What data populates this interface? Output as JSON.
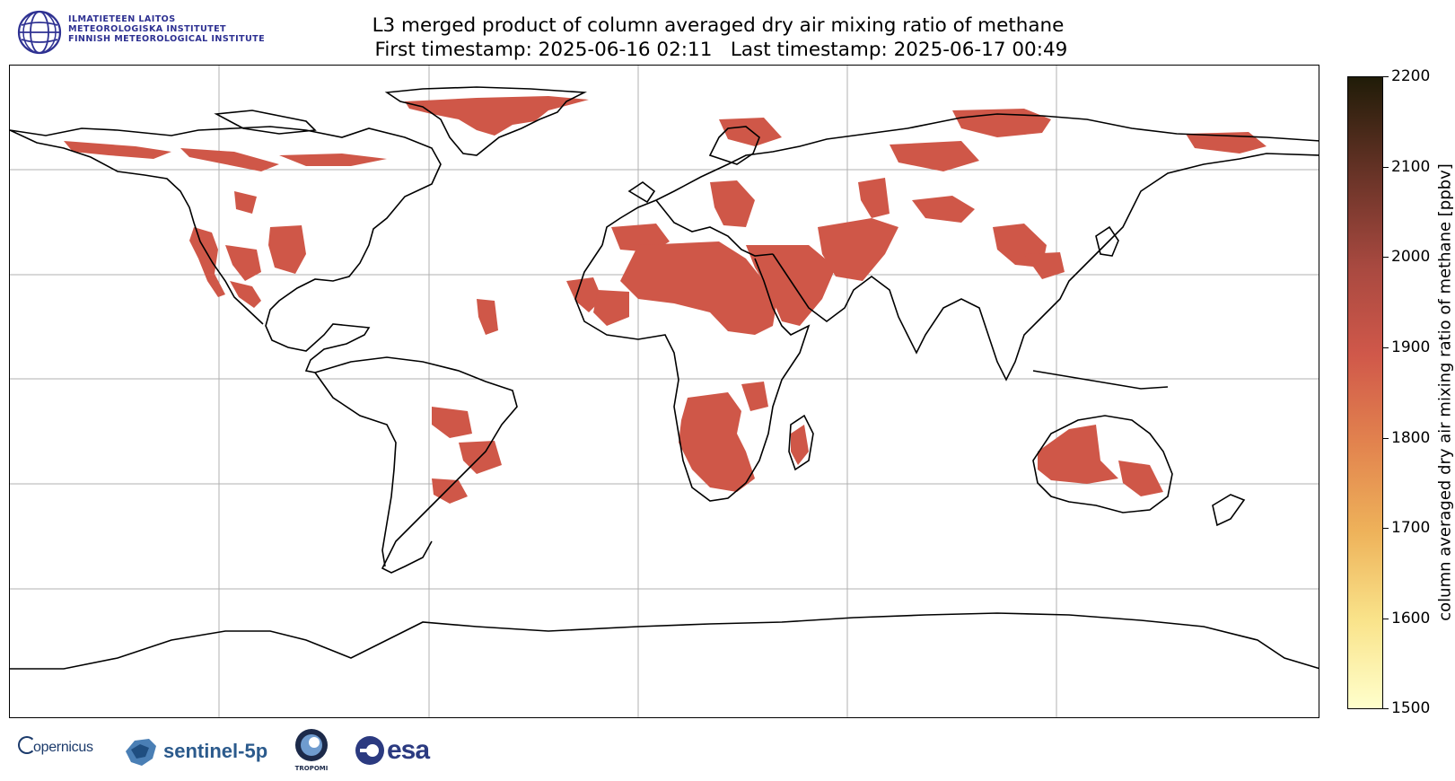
{
  "header": {
    "title_line1": "L3 merged product of column averaged dry air mixing ratio of methane",
    "title_line2": " First timestamp: 2025-06-16 02:11   Last timestamp: 2025-06-17 00:49"
  },
  "institute_logo": {
    "line1": "ILMATIETEEN LAITOS",
    "line2": "METEOROLOGISKA INSTITUTET",
    "line3": "FINNISH METEOROLOGICAL INSTITUTE",
    "color": "#2e3192"
  },
  "colorbar": {
    "label": "column averaged dry air mixing ratio of methane [ppbv]",
    "min": 1500,
    "max": 2200,
    "ticks": [
      "2200",
      "2100",
      "2000",
      "1900",
      "1800",
      "1700",
      "1600",
      "1500"
    ],
    "colormap": [
      "#ffffcc",
      "#f9e38a",
      "#eeb25a",
      "#e2834e",
      "#d0584a",
      "#a84940",
      "#6b3428",
      "#201c08"
    ]
  },
  "map": {
    "projection": "equirectangular",
    "gridlines": true,
    "data_color": "#cf5748",
    "regions_with_data": [
      "Greenland",
      "Western United States",
      "Mexico",
      "Sahara",
      "Arabian Peninsula",
      "Central Asia",
      "Southern Africa",
      "Australia",
      "South America",
      "Siberia"
    ]
  },
  "footer_logos": {
    "copernicus": "opernicus",
    "sentinel": "sentinel-5p",
    "tropomi": "TROPOMI",
    "esa": "esa"
  }
}
